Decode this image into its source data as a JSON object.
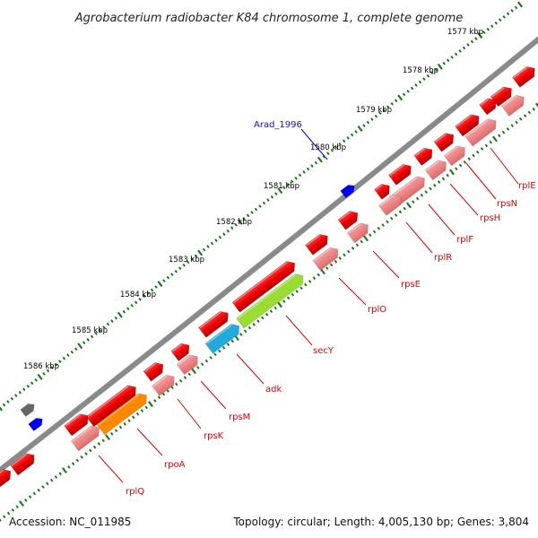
{
  "title": "Agrobacterium radiobacter K84 chromosome 1, complete genome",
  "footer": {
    "accession": "Accession: NC_011985",
    "topology": "Topology: circular; Length: 4,005,130 bp; Genes: 3,804"
  },
  "kbp_labels": [
    "1577 kbp",
    "1578 kbp",
    "1579 kbp",
    "1580 kbp",
    "1581 kbp",
    "1582 kbp",
    "1583 kbp",
    "1584 kbp",
    "1585 kbp",
    "1586 kbp"
  ],
  "feature": {
    "label": "Arad_1996",
    "color": "#0000ee"
  },
  "genes": [
    "rplE",
    "rpsN",
    "rpsH",
    "rplF",
    "rplR",
    "rpsE",
    "rplO",
    "secY",
    "adk",
    "rpsM",
    "rpsK",
    "rpoA",
    "rplQ"
  ],
  "colors": {
    "gene": "#ee0000",
    "gene_light": "#f08080",
    "secY": "#99dd33",
    "adk": "#22aadd",
    "rpoA": "#ff8800",
    "strand_line": "#888888",
    "grey_gene": "#666666",
    "tick": "#1f7a1f"
  }
}
